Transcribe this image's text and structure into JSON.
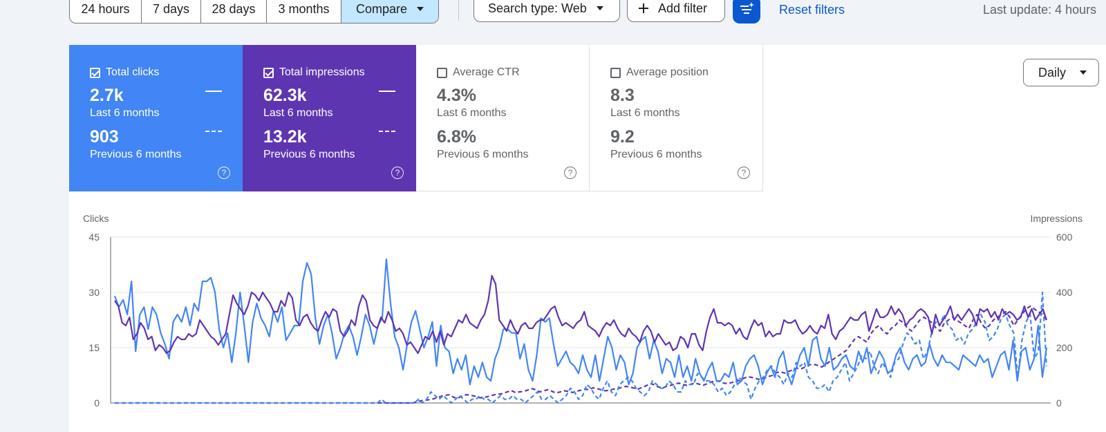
{
  "toolbar": {
    "ranges": [
      "24 hours",
      "7 days",
      "28 days",
      "3 months"
    ],
    "compare_label": "Compare",
    "search_type_label": "Search type: Web",
    "add_filter_label": "Add filter",
    "reset_filters_label": "Reset filters",
    "last_update": "Last update: 4 hours"
  },
  "metrics": [
    {
      "title": "Total clicks",
      "checked": true,
      "current": "2.7k",
      "current_period": "Last 6 months",
      "previous": "903",
      "previous_period": "Previous 6 months"
    },
    {
      "title": "Total impressions",
      "checked": true,
      "current": "62.3k",
      "current_period": "Last 6 months",
      "previous": "13.2k",
      "previous_period": "Previous 6 months"
    },
    {
      "title": "Average CTR",
      "checked": false,
      "current": "4.3%",
      "current_period": "Last 6 months",
      "previous": "6.8%",
      "previous_period": "Previous 6 months"
    },
    {
      "title": "Average position",
      "checked": false,
      "current": "8.3",
      "current_period": "Last 6 months",
      "previous": "9.2",
      "previous_period": "Previous 6 months"
    }
  ],
  "granularity": "Daily",
  "help_glyph": "?",
  "colors": {
    "clicks": "#4285f4",
    "impressions": "#5e35b1",
    "accent": "#0b57d0",
    "compare_bg": "#c2e7ff"
  },
  "chart_data": {
    "type": "line",
    "left_axis_label": "Clicks",
    "right_axis_label": "Impressions",
    "left_ticks": [
      "0",
      "15",
      "30",
      "45"
    ],
    "right_ticks": [
      "0",
      "200",
      "400",
      "600"
    ],
    "left_ylim": [
      0,
      45
    ],
    "right_ylim": [
      0,
      600
    ],
    "grid": true,
    "series": [
      {
        "name": "Total clicks",
        "axis": "left",
        "style": "solid",
        "color": "#4285f4",
        "values": [
          29,
          26,
          28,
          24,
          33,
          14,
          24,
          26,
          20,
          26,
          24,
          19,
          16,
          12,
          22,
          24,
          22,
          26,
          21,
          27,
          25,
          33,
          33,
          34,
          30,
          20,
          15,
          19,
          11,
          19,
          30,
          21,
          11,
          22,
          27,
          23,
          21,
          18,
          25,
          22,
          26,
          17,
          19,
          21,
          21,
          33,
          38,
          35,
          23,
          16,
          21,
          24,
          19,
          12,
          15,
          19,
          21,
          18,
          13,
          18,
          24,
          21,
          16,
          21,
          23,
          39,
          27,
          18,
          15,
          9,
          16,
          22,
          25,
          20,
          15,
          18,
          22,
          10,
          21,
          15,
          14,
          8,
          12,
          9,
          13,
          5,
          10,
          7,
          11,
          7,
          6,
          12,
          15,
          20,
          20,
          19,
          19,
          12,
          16,
          9,
          6,
          13,
          23,
          22,
          23,
          16,
          10,
          12,
          14,
          11,
          10,
          8,
          13,
          9,
          7,
          13,
          6,
          12,
          18,
          15,
          9,
          13,
          11,
          5,
          8,
          15,
          17,
          18,
          12,
          17,
          14,
          8,
          12,
          11,
          7,
          13,
          7,
          10,
          6,
          12,
          8,
          6,
          9,
          11,
          6,
          6,
          8,
          7,
          11,
          5,
          6,
          10,
          12,
          13,
          10,
          5,
          8,
          10,
          7,
          12,
          14,
          8,
          5,
          9,
          13,
          15,
          10,
          17,
          18,
          12,
          10,
          15,
          9,
          10,
          12,
          13,
          10,
          9,
          14,
          11,
          15,
          8,
          11,
          14,
          12,
          8,
          9,
          13,
          15,
          11,
          9,
          12,
          13,
          10,
          11,
          16,
          12,
          10,
          13,
          11,
          11,
          10,
          9,
          13,
          12,
          11,
          10,
          13,
          11,
          12,
          7,
          10,
          13,
          14,
          9,
          17,
          6,
          14,
          15,
          9,
          12,
          21,
          7,
          15
        ]
      },
      {
        "name": "Total impressions",
        "axis": "right",
        "style": "solid",
        "color": "#5e35b1",
        "values": [
          370,
          350,
          290,
          280,
          310,
          230,
          250,
          290,
          270,
          230,
          240,
          190,
          210,
          200,
          180,
          190,
          220,
          240,
          230,
          230,
          250,
          240,
          250,
          300,
          280,
          260,
          240,
          230,
          210,
          230,
          250,
          320,
          390,
          360,
          340,
          320,
          350,
          400,
          390,
          370,
          400,
          380,
          360,
          330,
          330,
          370,
          350,
          400,
          380,
          300,
          280,
          310,
          320,
          290,
          270,
          260,
          300,
          330,
          310,
          340,
          330,
          260,
          240,
          260,
          300,
          280,
          350,
          390,
          370,
          300,
          280,
          270,
          310,
          290,
          330,
          300,
          260,
          270,
          250,
          210,
          220,
          200,
          180,
          210,
          240,
          230,
          260,
          220,
          260,
          210,
          250,
          240,
          270,
          300,
          290,
          320,
          290,
          280,
          270,
          300,
          320,
          370,
          460,
          430,
          300,
          280,
          260,
          300,
          270,
          250,
          280,
          290,
          270,
          270,
          290,
          300,
          300,
          320,
          340,
          350,
          310,
          280,
          290,
          280,
          270,
          290,
          300,
          330,
          280,
          270,
          260,
          240,
          270,
          290,
          280,
          300,
          270,
          250,
          240,
          270,
          250,
          240,
          220,
          260,
          280,
          260,
          220,
          250,
          230,
          210,
          220,
          190,
          200,
          240,
          230,
          200,
          250,
          250,
          210,
          190,
          260,
          310,
          340,
          290,
          290,
          280,
          290,
          280,
          250,
          270,
          240,
          230,
          270,
          300,
          280,
          290,
          240,
          260,
          240,
          250,
          250,
          300,
          290,
          290,
          300,
          270,
          250,
          260,
          280,
          260,
          250,
          280,
          270,
          320,
          250,
          230,
          260,
          270,
          290,
          310,
          300,
          300,
          320,
          330,
          260,
          300,
          340,
          310,
          310,
          320,
          350,
          320,
          340,
          320,
          280,
          300,
          310,
          330,
          340,
          330,
          310,
          250,
          320,
          280,
          300,
          320,
          350,
          300,
          320,
          300,
          320,
          340,
          320,
          280,
          340,
          330,
          340,
          310,
          330,
          300,
          340,
          320,
          330,
          320,
          300,
          310,
          350,
          310,
          340,
          300,
          320,
          340,
          300
        ]
      },
      {
        "name": "Total clicks (previous)",
        "axis": "left",
        "style": "dashed",
        "color": "#4285f4",
        "values": [
          0,
          0,
          0,
          0,
          0,
          0,
          0,
          0,
          0,
          0,
          0,
          0,
          0,
          0,
          0,
          0,
          0,
          0,
          0,
          0,
          0,
          0,
          0,
          0,
          0,
          0,
          0,
          0,
          0,
          0,
          0,
          0,
          0,
          0,
          0,
          0,
          0,
          0,
          0,
          0,
          0,
          0,
          0,
          0,
          0,
          0,
          0,
          0,
          0,
          0,
          0,
          0,
          0,
          0,
          0,
          0,
          0,
          0,
          0,
          0,
          0,
          0,
          0,
          0,
          0,
          1,
          0,
          0,
          0,
          0,
          0,
          0,
          0,
          0,
          1,
          0,
          1,
          3,
          2,
          1,
          2,
          1,
          0,
          1,
          2,
          1,
          0,
          1,
          1,
          2,
          1,
          1,
          0,
          1,
          2,
          1,
          1,
          2,
          1,
          1,
          0,
          1,
          2,
          3,
          1,
          1,
          2,
          1,
          0,
          1,
          2,
          4,
          3,
          1,
          2,
          5,
          4,
          2,
          1,
          4,
          6,
          3,
          2,
          5,
          6,
          7,
          6,
          4,
          3,
          2,
          3,
          6,
          5,
          4,
          4,
          6,
          5,
          3,
          3,
          6,
          5,
          5,
          8,
          7,
          6,
          6,
          5,
          3,
          4,
          2,
          3,
          5,
          7,
          6,
          5,
          1,
          4,
          6,
          7,
          9,
          10,
          8,
          7,
          5,
          8,
          7,
          11,
          10,
          11,
          7,
          6,
          4,
          4,
          5,
          3,
          6,
          7,
          9,
          11,
          6,
          8,
          10,
          13,
          12,
          14,
          10,
          8,
          11,
          9,
          7,
          11,
          12,
          16,
          19,
          18,
          16,
          17,
          12,
          14,
          19,
          22,
          21,
          24,
          21,
          20,
          17,
          18,
          16,
          19,
          20,
          22,
          24,
          22,
          17,
          18,
          20,
          23,
          24,
          21,
          19,
          7,
          17,
          22,
          24,
          12,
          14,
          30,
          10
        ]
      },
      {
        "name": "Total impressions (previous)",
        "axis": "right",
        "style": "dashed",
        "color": "#5e35b1",
        "values": [
          0,
          0,
          0,
          0,
          0,
          0,
          0,
          0,
          0,
          0,
          0,
          0,
          0,
          0,
          0,
          0,
          0,
          0,
          0,
          0,
          0,
          0,
          0,
          0,
          0,
          0,
          0,
          0,
          0,
          0,
          0,
          0,
          0,
          0,
          0,
          0,
          0,
          0,
          0,
          0,
          0,
          0,
          0,
          0,
          0,
          0,
          0,
          0,
          0,
          0,
          0,
          0,
          0,
          0,
          0,
          0,
          0,
          0,
          0,
          0,
          0,
          0,
          0,
          0,
          0,
          0,
          0,
          0,
          0,
          0,
          0,
          0,
          0,
          0,
          5,
          8,
          10,
          12,
          15,
          20,
          25,
          28,
          30,
          20,
          18,
          25,
          30,
          28,
          25,
          20,
          18,
          22,
          26,
          30,
          32,
          34,
          40,
          45,
          38,
          40,
          42,
          46,
          52,
          48,
          40,
          44,
          48,
          42,
          36,
          40,
          44,
          42,
          38,
          42,
          46,
          50,
          48,
          55,
          52,
          48,
          44,
          46,
          50,
          52,
          56,
          60,
          58,
          54,
          50,
          56,
          62,
          70,
          66,
          58,
          54,
          60,
          64,
          68,
          72,
          66,
          64,
          68,
          72,
          68,
          64,
          70,
          76,
          80,
          78,
          72,
          70,
          74,
          78,
          82,
          90,
          95,
          92,
          88,
          84,
          90,
          96,
          100,
          110,
          112,
          108,
          115,
          120,
          126,
          124,
          130,
          138,
          140,
          136,
          130,
          140,
          150,
          160,
          170,
          180,
          190,
          210,
          230,
          240,
          230,
          220,
          250,
          270,
          280,
          260,
          250,
          270,
          280,
          300,
          290,
          270,
          260,
          280,
          300,
          310,
          300,
          290,
          270,
          260,
          290,
          300,
          310,
          300,
          290,
          280,
          270,
          300,
          320,
          290,
          270,
          280,
          300,
          310,
          320,
          330,
          310,
          280,
          300,
          320,
          340,
          350,
          340,
          330,
          320,
          300
        ]
      }
    ]
  }
}
